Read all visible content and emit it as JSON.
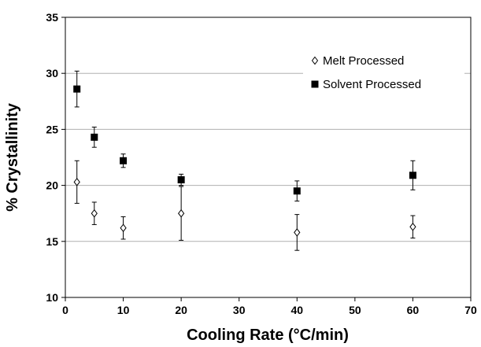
{
  "chart_data": {
    "type": "scatter",
    "title": "",
    "xlabel": "Cooling Rate (°C/min)",
    "ylabel": "% Crystallinity",
    "xlim": [
      0,
      70
    ],
    "ylim": [
      10,
      35
    ],
    "xticks": [
      0,
      10,
      20,
      30,
      40,
      50,
      60,
      70
    ],
    "yticks": [
      10,
      15,
      20,
      25,
      30,
      35
    ],
    "grid": "horizontal",
    "legend_position": "top-right",
    "series": [
      {
        "name": "Melt Processed",
        "marker": "open-diamond",
        "color": "#000000",
        "points": [
          {
            "x": 2,
            "y": 20.3,
            "err": 1.9
          },
          {
            "x": 5,
            "y": 17.5,
            "err": 1.0
          },
          {
            "x": 10,
            "y": 16.2,
            "err": 1.0
          },
          {
            "x": 20,
            "y": 17.5,
            "err": 2.4
          },
          {
            "x": 40,
            "y": 15.8,
            "err": 1.6
          },
          {
            "x": 60,
            "y": 16.3,
            "err": 1.0
          }
        ]
      },
      {
        "name": "Solvent Processed",
        "marker": "filled-square",
        "color": "#000000",
        "points": [
          {
            "x": 2,
            "y": 28.6,
            "err": 1.6
          },
          {
            "x": 5,
            "y": 24.3,
            "err": 0.9
          },
          {
            "x": 10,
            "y": 22.2,
            "err": 0.6
          },
          {
            "x": 20,
            "y": 20.5,
            "err": 0.5
          },
          {
            "x": 40,
            "y": 19.5,
            "err": 0.9
          },
          {
            "x": 60,
            "y": 20.9,
            "err": 1.3
          }
        ]
      }
    ]
  }
}
